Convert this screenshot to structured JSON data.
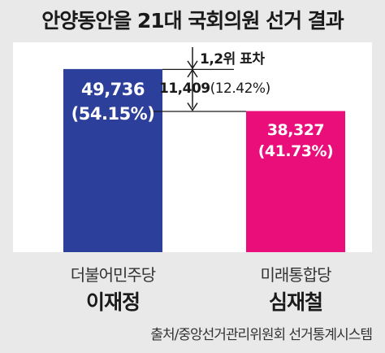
{
  "title": "안양동안을 21대 국회의원 선거 결과",
  "source": "출처/중앙선거관리위원회 선거통계시스템",
  "annotation": {
    "label": "1,2위 표차",
    "value": "11,409",
    "percent": "(12.42%)"
  },
  "colors": {
    "background": "#e9e9e9",
    "panel": "#ffffff",
    "democratic": "#2c3f9a",
    "future_united": "#ea0e7b"
  },
  "chart_data": {
    "type": "bar",
    "title": "안양동안을 21대 국회의원 선거 결과",
    "categories": [
      "더불어민주당 이재정",
      "미래통합당 심재철"
    ],
    "values": [
      49736,
      38327
    ],
    "percents": [
      54.15,
      41.73
    ],
    "value_labels": [
      "49,736",
      "38,327"
    ],
    "percent_labels": [
      "(54.15%)",
      "(41.73%)"
    ],
    "colors": [
      "#2c3f9a",
      "#ea0e7b"
    ],
    "ylim": [
      0,
      57000
    ],
    "grid": false
  },
  "candidates": [
    {
      "party": "더불어민주당",
      "name": "이재정"
    },
    {
      "party": "미래통합당",
      "name": "심재철"
    }
  ]
}
